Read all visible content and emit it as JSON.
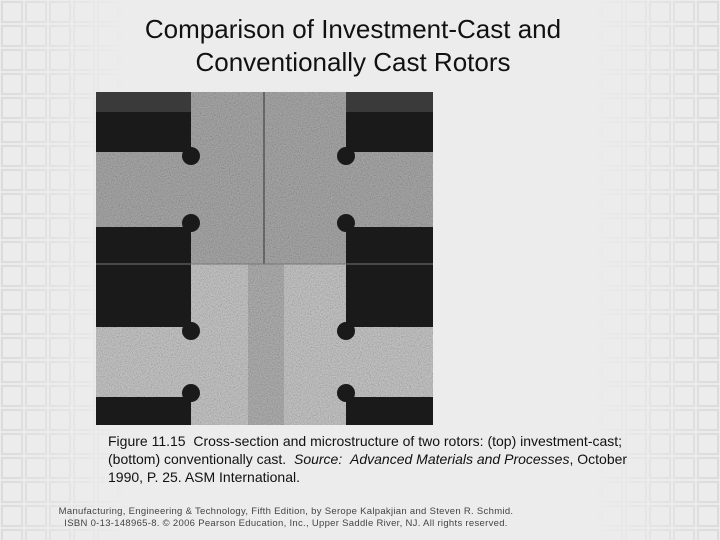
{
  "header": {
    "title_lines": [
      "Comparison of Investment-Cast and",
      "Conventionally Cast Rotors"
    ]
  },
  "figure": {
    "caption": [
      {
        "text": "Figure 11.15  Cross-section and microstructure of two rotors: (top) investment-cast; (bottom) conventionally cast.  ",
        "italic": false
      },
      {
        "text": "Source:",
        "italic": true
      },
      {
        "text": "  ",
        "italic": false
      },
      {
        "text": "Advanced Materials and Processes",
        "italic": true
      },
      {
        "text": ", October 1990, P. 25. ASM International.",
        "italic": false
      }
    ]
  },
  "footer": {
    "lines": [
      "Manufacturing, Engineering & Technology, Fifth Edition, by Serope Kalpakjian and Steven R. Schmid.",
      "ISBN 0-13-148965-8. © 2006 Pearson Education, Inc., Upper Saddle River, NJ.  All rights reserved."
    ]
  }
}
